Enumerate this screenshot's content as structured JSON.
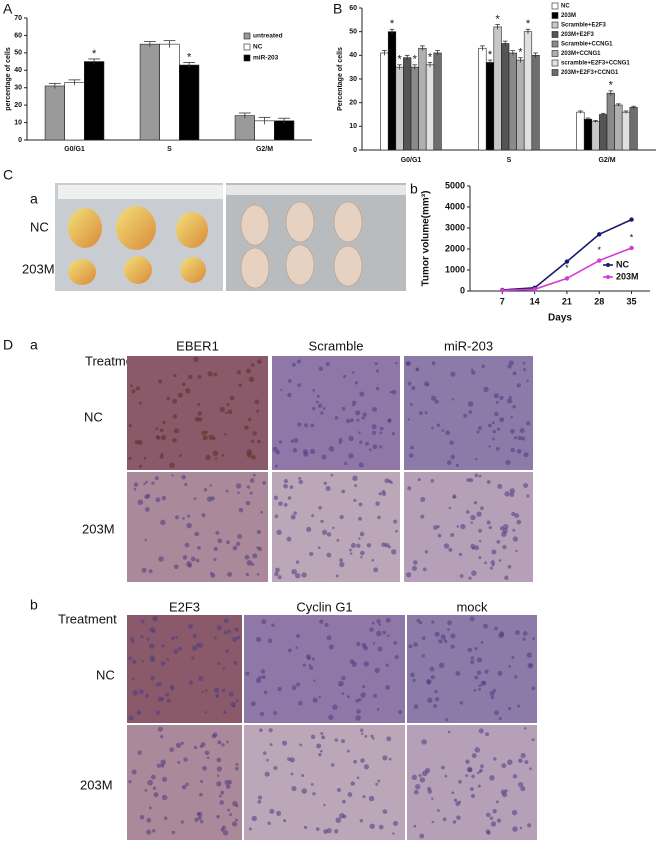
{
  "chart_data": [
    {
      "type": "bar",
      "ylabel": "percentage of cells",
      "categories": [
        "G0/G1",
        "S",
        "G2/M"
      ],
      "ylim": [
        0,
        70
      ],
      "yticks": [
        0,
        10,
        20,
        30,
        40,
        50,
        60,
        70
      ],
      "significance_label": "*",
      "series": [
        {
          "name": "untreated",
          "color": "#9a9a9a",
          "values": [
            31,
            55,
            14
          ],
          "errors": [
            1.5,
            1.5,
            1.5
          ],
          "starred": []
        },
        {
          "name": "NC",
          "color": "#ffffff",
          "values": [
            33,
            55,
            11
          ],
          "errors": [
            1.5,
            2,
            2
          ],
          "starred": []
        },
        {
          "name": "miR-203",
          "color": "#000000",
          "values": [
            45,
            43,
            11
          ],
          "errors": [
            1.5,
            1.5,
            1.5
          ],
          "starred": [
            0,
            1
          ]
        }
      ]
    },
    {
      "type": "bar",
      "ylabel": "Percentage of cells",
      "categories": [
        "G0/G1",
        "S",
        "G2/M"
      ],
      "ylim": [
        0,
        60
      ],
      "yticks": [
        0,
        10,
        20,
        30,
        40,
        50,
        60
      ],
      "significance_label": "*",
      "series": [
        {
          "name": "NC",
          "color": "#ffffff",
          "values": [
            41,
            43,
            16
          ],
          "errors": [
            1,
            1,
            0.5
          ],
          "starred": []
        },
        {
          "name": "203M",
          "color": "#000000",
          "values": [
            50,
            37,
            13
          ],
          "errors": [
            1,
            1,
            0.5
          ],
          "starred": [
            0,
            1
          ]
        },
        {
          "name": "Scramble+E2F3",
          "color": "#c8c8c8",
          "values": [
            35,
            52,
            12
          ],
          "errors": [
            1,
            1,
            0.5
          ],
          "starred": [
            0,
            1
          ]
        },
        {
          "name": "203M+E2F3",
          "color": "#555555",
          "values": [
            39,
            45,
            15
          ],
          "errors": [
            1,
            1,
            0.5
          ],
          "starred": []
        },
        {
          "name": "Scramble+CCNG1",
          "color": "#8a8a8a",
          "values": [
            35,
            41,
            24
          ],
          "errors": [
            1,
            1,
            1
          ],
          "starred": [
            0,
            2
          ]
        },
        {
          "name": "203M+CCNG1",
          "color": "#b0b0b0",
          "values": [
            43,
            38,
            19
          ],
          "errors": [
            1,
            1,
            0.5
          ],
          "starred": [
            1
          ]
        },
        {
          "name": "scramble+E2F3+CCNG1",
          "color": "#e0e0e0",
          "values": [
            36,
            50,
            16
          ],
          "errors": [
            1,
            1,
            0.5
          ],
          "starred": [
            0,
            1
          ]
        },
        {
          "name": "203M+E2F3+CCNG1",
          "color": "#6e6e6e",
          "values": [
            41,
            40,
            18
          ],
          "errors": [
            1,
            1,
            0.5
          ],
          "starred": []
        }
      ]
    },
    {
      "type": "line",
      "xlabel": "Days",
      "ylabel": "Tumor volume(mm³)",
      "x": [
        7,
        14,
        21,
        28,
        35
      ],
      "xlim": [
        0,
        39
      ],
      "xticks": [
        7,
        14,
        21,
        28,
        35
      ],
      "ylim": [
        0,
        5000
      ],
      "yticks": [
        0,
        1000,
        2000,
        3000,
        4000,
        5000
      ],
      "significance_label": "*",
      "series": [
        {
          "name": "NC",
          "color": "#1a1a6e",
          "values": [
            50,
            150,
            1400,
            2700,
            3400
          ],
          "starred": []
        },
        {
          "name": "203M",
          "color": "#d23cd2",
          "values": [
            30,
            80,
            600,
            1450,
            2050
          ],
          "starred": [
            2,
            3,
            4
          ]
        }
      ]
    }
  ],
  "panel_labels": [
    "A",
    "B",
    "C",
    "D"
  ],
  "photo_panel": {
    "label": "a",
    "rows": [
      "NC",
      "203M"
    ]
  },
  "tumor_panel_label": "b",
  "histology": [
    {
      "label": "a",
      "treatment": "Treatment",
      "columns": [
        "EBER1",
        "Scramble",
        "miR-203"
      ],
      "rows": [
        "NC",
        "203M"
      ]
    },
    {
      "label": "b",
      "treatment": "Treatment",
      "columns": [
        "E2F3",
        "Cyclin G1",
        "mock"
      ],
      "rows": [
        "NC",
        "203M"
      ]
    }
  ]
}
